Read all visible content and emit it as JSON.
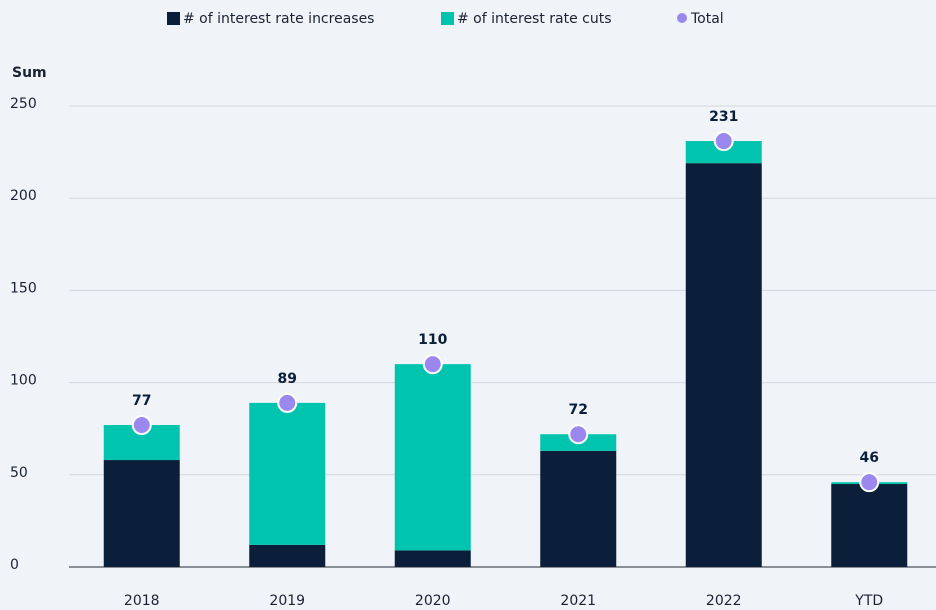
{
  "chart_data": {
    "type": "stacked_bar",
    "y_axis_label": "Sum",
    "categories": [
      "2018",
      "2019",
      "2020",
      "2021",
      "2022",
      "YTD"
    ],
    "series": [
      {
        "name": "# of interest rate increases",
        "color": "#0b1f3a",
        "values": [
          58,
          12,
          9,
          63,
          219,
          45
        ]
      },
      {
        "name": "# of interest rate cuts",
        "color": "#00c4ad",
        "values": [
          19,
          77,
          101,
          9,
          12,
          1
        ]
      },
      {
        "name": "Total",
        "color": "#9b88ee",
        "values": [
          77,
          89,
          110,
          72,
          231,
          46
        ]
      }
    ],
    "ylim": [
      0,
      250
    ],
    "yticks": [
      0,
      50,
      100,
      150,
      200,
      250
    ],
    "grid": true,
    "legend": "top"
  }
}
